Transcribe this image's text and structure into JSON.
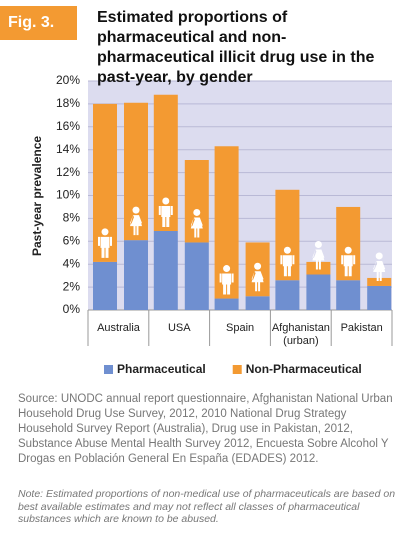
{
  "figure_label": "Fig. 3.",
  "chart_data": {
    "type": "stacked_grouped_bar",
    "title": "Estimated proportions of pharmaceutical and non-pharmaceutical illicit drug use in the past-year, by gender",
    "y_label": "Past-year prevalence",
    "categories": [
      "Australia",
      "USA",
      "Spain",
      "Afghanistan (urban)",
      "Pakistan"
    ],
    "series": [
      {
        "name": "Pharmaceutical",
        "color": "#6f8fd0",
        "values": [
          [
            4.2,
            6.1
          ],
          [
            6.9,
            5.9
          ],
          [
            1.0,
            1.2
          ],
          [
            2.6,
            3.1
          ],
          [
            2.6,
            2.1
          ]
        ]
      },
      {
        "name": "Non-Pharmaceutical",
        "color": "#f39a32",
        "values": [
          [
            13.8,
            12.0
          ],
          [
            11.9,
            7.2
          ],
          [
            13.3,
            4.7
          ],
          [
            7.9,
            1.1
          ],
          [
            6.4,
            0.7
          ]
        ]
      }
    ],
    "ylim": [
      0,
      20
    ],
    "yticks": [
      {
        "value": 0,
        "label": "0%"
      },
      {
        "value": 2,
        "label": "2%"
      },
      {
        "value": 4,
        "label": "4%"
      },
      {
        "value": 6,
        "label": "6%"
      },
      {
        "value": 8,
        "label": "8%"
      },
      {
        "value": 10,
        "label": "10%"
      },
      {
        "value": 12,
        "label": "12%"
      },
      {
        "value": 14,
        "label": "14%"
      },
      {
        "value": 16,
        "label": "16%"
      },
      {
        "value": 18,
        "label": "18%"
      },
      {
        "value": 20,
        "label": "20%"
      }
    ],
    "grid": true
  },
  "source": "Source: UNODC annual report questionnaire, Afghanistan National Urban Household Drug Use Survey, 2012, 2010 National Drug Strategy Household Survey Report (Australia), Drug use in Pakistan, 2012, Substance Abuse Mental Health Survey 2012, Encuesta Sobre Alcohol Y Drogas en Población General En España (EDADES) 2012.",
  "note": "Note: Estimated proportions of non-medical use of pharmaceuticals are based on best available estimates and may not reflect all classes of pharmaceutical substances which are known to be abused."
}
